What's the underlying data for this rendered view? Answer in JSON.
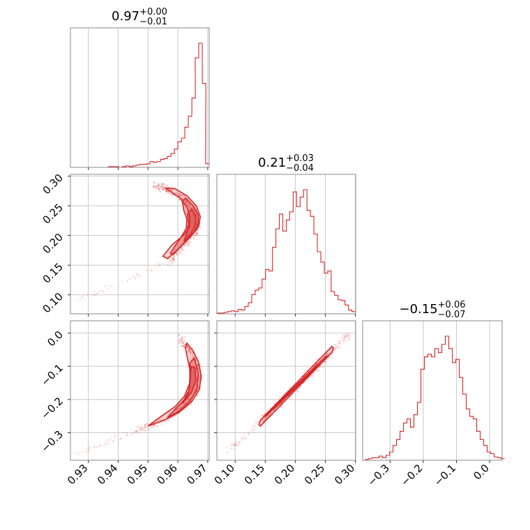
{
  "figure": {
    "type": "corner-plot",
    "color": "#d62728"
  },
  "chart_data": [
    {
      "type": "histogram",
      "panel": "p0-hist",
      "title_main": "0.97",
      "title_sup": "+0.00",
      "title_sub": "−0.01",
      "xlim": [
        0.924,
        0.9705
      ],
      "bin_left_edges": [
        0.925,
        0.9262,
        0.9273,
        0.9285,
        0.9297,
        0.9308,
        0.932,
        0.9332,
        0.9343,
        0.9355,
        0.9367,
        0.9378,
        0.939,
        0.9402,
        0.9413,
        0.9425,
        0.9437,
        0.9448,
        0.946,
        0.9472,
        0.9483,
        0.9495,
        0.9507,
        0.9518,
        0.953,
        0.9542,
        0.9553,
        0.9565,
        0.9577,
        0.9588,
        0.96,
        0.9612,
        0.9623,
        0.9635,
        0.9647,
        0.9658,
        0.967,
        0.9682,
        0.9693
      ],
      "bin_width": 0.00117,
      "counts": [
        0,
        0,
        0,
        0,
        0,
        0,
        0,
        0,
        0,
        0,
        1,
        1,
        1,
        0,
        1,
        2,
        1,
        2,
        3,
        4,
        4,
        5,
        8,
        7,
        8,
        11,
        12,
        15,
        19,
        25,
        35,
        40,
        55,
        70,
        95,
        150,
        170,
        115,
        5
      ],
      "color": "#d62728"
    },
    {
      "type": "histogram",
      "panel": "p1-hist",
      "title_main": "0.21",
      "title_sup": "+0.03",
      "title_sub": "−0.04",
      "xlim": [
        0.0695,
        0.3005
      ],
      "bin_left_edges": [
        0.07,
        0.0758,
        0.0815,
        0.0872,
        0.093,
        0.0988,
        0.1045,
        0.1102,
        0.116,
        0.1218,
        0.1275,
        0.1332,
        0.139,
        0.1448,
        0.1505,
        0.1562,
        0.162,
        0.1677,
        0.1735,
        0.1793,
        0.185,
        0.1907,
        0.1965,
        0.2023,
        0.208,
        0.2137,
        0.2195,
        0.2252,
        0.231,
        0.2367,
        0.2425,
        0.2483,
        0.254,
        0.2597,
        0.2655,
        0.2712,
        0.277,
        0.2828,
        0.2885,
        0.2942
      ],
      "bin_width": 0.00575,
      "counts": [
        1,
        1,
        2,
        3,
        4,
        3,
        6,
        5,
        10,
        15,
        26,
        32,
        35,
        47,
        60,
        58,
        90,
        115,
        135,
        112,
        127,
        138,
        165,
        145,
        158,
        168,
        140,
        132,
        108,
        84,
        70,
        55,
        58,
        30,
        25,
        19,
        18,
        12,
        5,
        3
      ],
      "color": "#d62728"
    },
    {
      "type": "histogram",
      "panel": "p2-hist",
      "title_main": "−0.15",
      "title_sup": "+0.06",
      "title_sub": "−0.07",
      "xlim": [
        -0.3825,
        0.0375
      ],
      "bin_left_edges": [
        -0.375,
        -0.3645,
        -0.354,
        -0.3435,
        -0.333,
        -0.3225,
        -0.312,
        -0.3015,
        -0.291,
        -0.2805,
        -0.27,
        -0.2595,
        -0.249,
        -0.2385,
        -0.228,
        -0.2175,
        -0.207,
        -0.1965,
        -0.186,
        -0.1755,
        -0.165,
        -0.1545,
        -0.144,
        -0.1335,
        -0.123,
        -0.1125,
        -0.102,
        -0.0915,
        -0.081,
        -0.0705,
        -0.06,
        -0.0495,
        -0.039,
        -0.0285,
        -0.018,
        -0.0075,
        0.003,
        0.0135,
        0.024,
        0.0345
      ],
      "bin_width": 0.0105,
      "counts": [
        1,
        2,
        3,
        3,
        5,
        3,
        6,
        10,
        18,
        25,
        35,
        45,
        50,
        40,
        55,
        70,
        110,
        125,
        128,
        125,
        135,
        130,
        140,
        150,
        135,
        118,
        122,
        100,
        80,
        62,
        53,
        50,
        35,
        25,
        18,
        10,
        8,
        4,
        3,
        2
      ],
      "color": "#d62728"
    },
    {
      "type": "contour-scatter",
      "panel": "p10-2d",
      "x_param": "param1",
      "y_param": "param2",
      "xlim": [
        0.924,
        0.9705
      ],
      "ylim": [
        0.068,
        0.303
      ],
      "ridge": {
        "x": [
          0.9575,
          0.961,
          0.965,
          0.9665,
          0.9665,
          0.965,
          0.962,
          0.958,
          0.955,
          0.9515
        ],
        "y": [
          0.157,
          0.177,
          0.198,
          0.213,
          0.23,
          0.247,
          0.261,
          0.273,
          0.281,
          0.283
        ]
      },
      "contour_levels": [
        {
          "x": [
            0.9565,
            0.961,
            0.9645,
            0.967,
            0.9675,
            0.9662,
            0.963,
            0.959,
            0.956,
            0.957,
            0.9605,
            0.963,
            0.964,
            0.964,
            0.962,
            0.958,
            0.955,
            0.9565
          ],
          "y": [
            0.161,
            0.181,
            0.199,
            0.215,
            0.232,
            0.25,
            0.267,
            0.279,
            0.28,
            0.276,
            0.264,
            0.248,
            0.232,
            0.216,
            0.201,
            0.184,
            0.165,
            0.161
          ]
        },
        {
          "x": [
            0.9585,
            0.9618,
            0.965,
            0.9668,
            0.9668,
            0.965,
            0.9625,
            0.9615,
            0.962,
            0.963,
            0.9628,
            0.9612,
            0.959,
            0.9575,
            0.9585
          ],
          "y": [
            0.168,
            0.186,
            0.203,
            0.219,
            0.235,
            0.251,
            0.263,
            0.257,
            0.242,
            0.227,
            0.212,
            0.198,
            0.182,
            0.17,
            0.168
          ]
        },
        {
          "x": [
            0.962,
            0.9645,
            0.966,
            0.966,
            0.9645,
            0.9632,
            0.9636,
            0.963,
            0.962
          ],
          "y": [
            0.19,
            0.204,
            0.219,
            0.234,
            0.244,
            0.236,
            0.221,
            0.204,
            0.19
          ]
        }
      ],
      "color": "#d62728"
    },
    {
      "type": "contour-scatter",
      "panel": "p20-2d",
      "x_param": "param1",
      "y_param": "param3",
      "xlim": [
        0.924,
        0.9705
      ],
      "ylim": [
        -0.383,
        0.037
      ],
      "ridge": {
        "x": [
          0.9465,
          0.952,
          0.957,
          0.962,
          0.9655,
          0.967,
          0.967,
          0.9655,
          0.963,
          0.96
        ],
        "y": [
          -0.29,
          -0.275,
          -0.252,
          -0.222,
          -0.188,
          -0.15,
          -0.11,
          -0.07,
          -0.04,
          -0.01
        ]
      },
      "contour_levels": [
        {
          "x": [
            0.95,
            0.9555,
            0.9605,
            0.9645,
            0.9672,
            0.9678,
            0.967,
            0.9652,
            0.963,
            0.9625,
            0.9632,
            0.964,
            0.964,
            0.9622,
            0.959,
            0.9545,
            0.95
          ],
          "y": [
            -0.28,
            -0.262,
            -0.238,
            -0.208,
            -0.17,
            -0.13,
            -0.09,
            -0.055,
            -0.03,
            -0.045,
            -0.075,
            -0.11,
            -0.15,
            -0.19,
            -0.222,
            -0.25,
            -0.28
          ]
        },
        {
          "x": [
            0.9565,
            0.9605,
            0.964,
            0.9664,
            0.9669,
            0.9655,
            0.964,
            0.9642,
            0.9638,
            0.962,
            0.959,
            0.9565
          ],
          "y": [
            -0.255,
            -0.235,
            -0.205,
            -0.17,
            -0.12,
            -0.075,
            -0.09,
            -0.13,
            -0.17,
            -0.202,
            -0.23,
            -0.255
          ]
        },
        {
          "x": [
            0.9615,
            0.9645,
            0.966,
            0.9658,
            0.9645,
            0.964,
            0.9636,
            0.9615
          ],
          "y": [
            -0.212,
            -0.18,
            -0.145,
            -0.105,
            -0.1,
            -0.14,
            -0.18,
            -0.212
          ]
        }
      ],
      "color": "#d62728"
    },
    {
      "type": "contour-scatter",
      "panel": "p21-2d",
      "x_param": "param2",
      "y_param": "param3",
      "xlim": [
        0.0695,
        0.3005
      ],
      "ylim": [
        -0.383,
        0.037
      ],
      "ridge": {
        "x": [
          0.142,
          0.26
        ],
        "y": [
          -0.268,
          -0.055
        ]
      },
      "contour_levels": [
        {
          "x": [
            0.1395,
            0.142,
            0.261,
            0.2635,
            0.261,
            0.142,
            0.1395
          ],
          "y": [
            -0.276,
            -0.28,
            -0.058,
            -0.045,
            -0.04,
            -0.262,
            -0.276
          ]
        },
        {
          "x": [
            0.15,
            0.25,
            0.252,
            0.152,
            0.15
          ],
          "y": [
            -0.252,
            -0.078,
            -0.068,
            -0.244,
            -0.252
          ]
        },
        {
          "x": [
            0.165,
            0.235,
            0.2365,
            0.1665,
            0.165
          ],
          "y": [
            -0.228,
            -0.104,
            -0.098,
            -0.222,
            -0.228
          ]
        }
      ],
      "color": "#d62728"
    }
  ],
  "axes": {
    "x0": {
      "ticks": [
        0.93,
        0.94,
        0.95,
        0.96,
        0.97
      ],
      "labels": [
        "0.93",
        "0.94",
        "0.95",
        "0.96",
        "0.97"
      ]
    },
    "x1": {
      "ticks": [
        0.1,
        0.15,
        0.2,
        0.25,
        0.3
      ],
      "labels": [
        "0.10",
        "0.15",
        "0.20",
        "0.25",
        "0.30"
      ]
    },
    "x2": {
      "ticks": [
        -0.3,
        -0.2,
        -0.1,
        0.0
      ],
      "labels": [
        "−0.3",
        "−0.2",
        "−0.1",
        "0.0"
      ]
    },
    "y1": {
      "ticks": [
        0.1,
        0.15,
        0.2,
        0.25,
        0.3
      ],
      "labels": [
        "0.10",
        "0.15",
        "0.20",
        "0.25",
        "0.30"
      ]
    },
    "y2": {
      "ticks": [
        -0.3,
        -0.2,
        -0.1,
        0.0
      ],
      "labels": [
        "−0.3",
        "−0.2",
        "−0.1",
        "0.0"
      ]
    }
  }
}
